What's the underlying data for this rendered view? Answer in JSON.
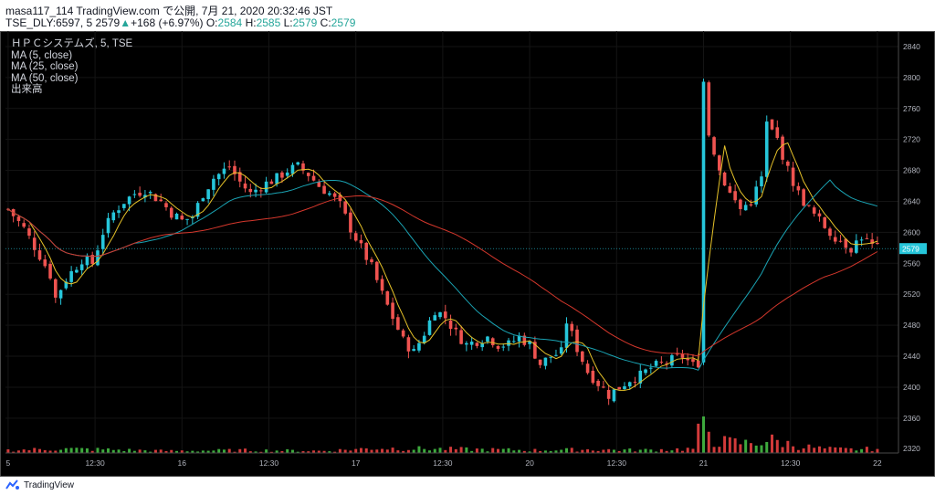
{
  "header": {
    "line1": "masa117_114 TradingView.com で公開, 7月 21, 2020 20:32:46 JST",
    "ticker_prefix": "TSE_DLY:6597, 5 ",
    "price": "2579",
    "change_arrow": "▲",
    "change": "+168 (+6.97%)",
    "o_label": "O:",
    "o_value": "2584",
    "h_label": "H:",
    "h_value": "2585",
    "l_label": "L:",
    "l_value": "2579",
    "c_label": "C:",
    "c_value": "2579"
  },
  "legend": {
    "symbol": "ＨＰＣシステムズ, 5, TSE",
    "ma5": "MA (5, close)",
    "ma25": "MA (25, close)",
    "ma50": "MA (50, close)",
    "volume": "出来高"
  },
  "footer": {
    "brand": "TradingView"
  },
  "colors": {
    "background": "#000000",
    "up_candle": "#26c6da",
    "down_candle": "#ef5350",
    "ma5": "#e6c229",
    "ma25": "#1aa3b3",
    "ma50": "#d4372c",
    "vol_up": "#3daa3d",
    "vol_down": "#d23a3a",
    "price_tag": "#26c6da"
  },
  "chart_data": {
    "type": "candlestick",
    "title": "ＨＰＣシステムズ, 5, TSE",
    "y_ticks": [
      2360,
      2400,
      2440,
      2480,
      2520,
      2560,
      2600,
      2640,
      2680,
      2720,
      2760,
      2800,
      2840
    ],
    "y_tick_extra": "2320",
    "ylim": [
      2315,
      2860
    ],
    "current_price": "2579",
    "x_ticks": [
      {
        "label": "5",
        "t": 0
      },
      {
        "label": "12:30",
        "t": 16.5
      },
      {
        "label": "16",
        "t": 33
      },
      {
        "label": "12:30",
        "t": 49.5
      },
      {
        "label": "17",
        "t": 66
      },
      {
        "label": "12:30",
        "t": 82.5
      },
      {
        "label": "20",
        "t": 99
      },
      {
        "label": "12:30",
        "t": 115.5
      },
      {
        "label": "21",
        "t": 132
      },
      {
        "label": "12:30",
        "t": 148.5
      },
      {
        "label": "22",
        "t": 165
      }
    ],
    "x_range": [
      -0.5,
      169
    ],
    "price_path": [
      [
        0,
        2630
      ],
      [
        3,
        2605
      ],
      [
        6,
        2570
      ],
      [
        8,
        2545
      ],
      [
        9,
        2515
      ],
      [
        11,
        2540
      ],
      [
        14,
        2565
      ],
      [
        16,
        2560
      ],
      [
        18,
        2600
      ],
      [
        20,
        2625
      ],
      [
        22,
        2640
      ],
      [
        24,
        2650
      ],
      [
        26,
        2655
      ],
      [
        29,
        2640
      ],
      [
        31,
        2625
      ],
      [
        33,
        2615
      ],
      [
        35,
        2620
      ],
      [
        37,
        2650
      ],
      [
        39,
        2670
      ],
      [
        42,
        2685
      ],
      [
        44,
        2665
      ],
      [
        46,
        2650
      ],
      [
        48,
        2660
      ],
      [
        51,
        2670
      ],
      [
        53,
        2680
      ],
      [
        55,
        2685
      ],
      [
        57,
        2675
      ],
      [
        59,
        2660
      ],
      [
        61,
        2650
      ],
      [
        63,
        2635
      ],
      [
        65,
        2605
      ],
      [
        67,
        2580
      ],
      [
        69,
        2555
      ],
      [
        71,
        2520
      ],
      [
        73,
        2490
      ],
      [
        75,
        2460
      ],
      [
        77,
        2445
      ],
      [
        79,
        2470
      ],
      [
        81,
        2500
      ],
      [
        83,
        2490
      ],
      [
        85,
        2470
      ],
      [
        87,
        2455
      ],
      [
        89,
        2460
      ],
      [
        91,
        2465
      ],
      [
        93,
        2455
      ],
      [
        95,
        2455
      ],
      [
        97,
        2465
      ],
      [
        99,
        2455
      ],
      [
        101,
        2430
      ],
      [
        103,
        2440
      ],
      [
        105,
        2445
      ],
      [
        106,
        2485
      ],
      [
        108,
        2450
      ],
      [
        110,
        2420
      ],
      [
        112,
        2405
      ],
      [
        114,
        2390
      ],
      [
        116,
        2400
      ],
      [
        118,
        2410
      ],
      [
        120,
        2415
      ],
      [
        122,
        2425
      ],
      [
        124,
        2430
      ],
      [
        126,
        2435
      ],
      [
        128,
        2440
      ],
      [
        130,
        2428
      ],
      [
        131,
        2432
      ],
      [
        132,
        2795
      ],
      [
        133,
        2730
      ],
      [
        135,
        2680
      ],
      [
        137,
        2650
      ],
      [
        139,
        2630
      ],
      [
        141,
        2640
      ],
      [
        143,
        2670
      ],
      [
        144,
        2740
      ],
      [
        146,
        2720
      ],
      [
        148,
        2680
      ],
      [
        150,
        2650
      ],
      [
        152,
        2630
      ],
      [
        154,
        2615
      ],
      [
        156,
        2600
      ],
      [
        158,
        2590
      ],
      [
        160,
        2580
      ],
      [
        162,
        2595
      ],
      [
        164,
        2582
      ],
      [
        165,
        2579
      ]
    ],
    "volume_max": 2.6,
    "volume_path": [
      [
        0,
        0.2
      ],
      [
        10,
        0.3
      ],
      [
        18,
        0.25
      ],
      [
        30,
        0.15
      ],
      [
        45,
        0.2
      ],
      [
        60,
        0.15
      ],
      [
        70,
        0.35
      ],
      [
        80,
        0.3
      ],
      [
        90,
        0.25
      ],
      [
        100,
        0.2
      ],
      [
        110,
        0.25
      ],
      [
        120,
        0.2
      ],
      [
        130,
        0.3
      ],
      [
        132,
        2.4
      ],
      [
        134,
        0.9
      ],
      [
        136,
        0.8
      ],
      [
        140,
        0.7
      ],
      [
        145,
        0.9
      ],
      [
        150,
        0.5
      ],
      [
        155,
        0.3
      ],
      [
        160,
        0.25
      ],
      [
        165,
        0.3
      ]
    ]
  }
}
